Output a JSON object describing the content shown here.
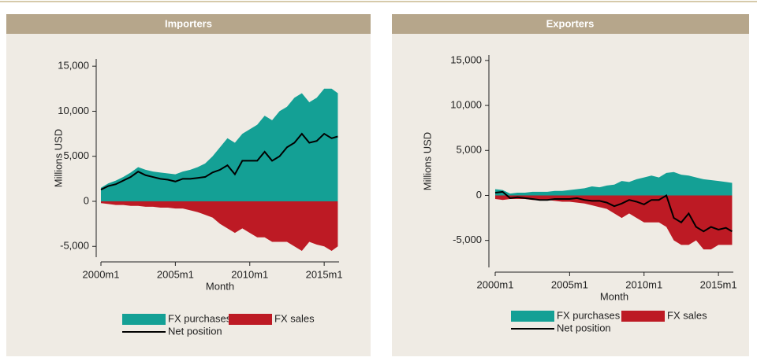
{
  "chart_data": [
    {
      "type": "area",
      "title": "Importers",
      "xlabel": "Month",
      "ylabel": "Millions USD",
      "x": [
        "2000m1",
        "2000m7",
        "2001m1",
        "2001m7",
        "2002m1",
        "2002m7",
        "2003m1",
        "2003m7",
        "2004m1",
        "2004m7",
        "2005m1",
        "2005m7",
        "2006m1",
        "2006m7",
        "2007m1",
        "2007m7",
        "2008m1",
        "2008m7",
        "2009m1",
        "2009m7",
        "2010m1",
        "2010m7",
        "2011m1",
        "2011m7",
        "2012m1",
        "2012m7",
        "2013m1",
        "2013m7",
        "2014m1",
        "2014m7",
        "2015m1",
        "2015m7",
        "2015m12"
      ],
      "xlim": [
        "2000m1",
        "2016m1"
      ],
      "xticks": [
        "2000m1",
        "2005m1",
        "2010m1",
        "2015m1"
      ],
      "ylim": [
        -6200,
        15800
      ],
      "yticks": [
        {
          "value": -5000,
          "label": "-5,000"
        },
        0,
        {
          "value": 5000,
          "label": "5,000"
        },
        {
          "value": 10000,
          "label": "10,000"
        },
        {
          "value": 15000,
          "label": "15,000"
        }
      ],
      "series": [
        {
          "name": "FX purchases",
          "color": "#14a095",
          "style": "area",
          "values": [
            1500,
            2000,
            2300,
            2700,
            3200,
            3800,
            3500,
            3300,
            3200,
            3100,
            3000,
            3300,
            3500,
            3800,
            4200,
            5000,
            6000,
            7000,
            6500,
            7500,
            8000,
            8500,
            9500,
            9000,
            10000,
            10500,
            11500,
            12000,
            11000,
            11500,
            12500,
            12500,
            12000
          ]
        },
        {
          "name": "FX sales",
          "color": "#bd1a24",
          "style": "area",
          "values": [
            -200,
            -300,
            -400,
            -400,
            -500,
            -500,
            -600,
            -600,
            -700,
            -700,
            -800,
            -800,
            -1000,
            -1200,
            -1500,
            -1800,
            -2500,
            -3000,
            -3500,
            -3000,
            -3500,
            -4000,
            -4000,
            -4500,
            -4500,
            -4500,
            -5000,
            -5500,
            -4500,
            -4800,
            -5000,
            -5500,
            -5000
          ]
        },
        {
          "name": "Net position",
          "color": "#000000",
          "style": "line",
          "values": [
            1300,
            1700,
            1900,
            2300,
            2700,
            3300,
            2900,
            2700,
            2500,
            2400,
            2200,
            2500,
            2500,
            2600,
            2700,
            3200,
            3500,
            4000,
            3000,
            4500,
            4500,
            4500,
            5500,
            4500,
            5000,
            6000,
            6500,
            7500,
            6500,
            6700,
            7500,
            7000,
            7200
          ]
        }
      ]
    },
    {
      "type": "area",
      "title": "Exporters",
      "xlabel": "Month",
      "ylabel": "Millions USD",
      "x": [
        "2000m1",
        "2000m7",
        "2001m1",
        "2001m7",
        "2002m1",
        "2002m7",
        "2003m1",
        "2003m7",
        "2004m1",
        "2004m7",
        "2005m1",
        "2005m7",
        "2006m1",
        "2006m7",
        "2007m1",
        "2007m7",
        "2008m1",
        "2008m7",
        "2009m1",
        "2009m7",
        "2010m1",
        "2010m7",
        "2011m1",
        "2011m7",
        "2012m1",
        "2012m7",
        "2013m1",
        "2013m7",
        "2014m1",
        "2014m7",
        "2015m1",
        "2015m7",
        "2015m12"
      ],
      "xlim": [
        "2000m1",
        "2016m1"
      ],
      "xticks": [
        "2000m1",
        "2005m1",
        "2010m1",
        "2015m1"
      ],
      "ylim": [
        -8000,
        15600
      ],
      "yticks": [
        {
          "value": -5000,
          "label": "-5,000"
        },
        0,
        {
          "value": 5000,
          "label": "5,000"
        },
        {
          "value": 10000,
          "label": "10,000"
        },
        {
          "value": 15000,
          "label": "15,000"
        }
      ],
      "series": [
        {
          "name": "FX purchases",
          "color": "#14a095",
          "style": "area",
          "values": [
            700,
            600,
            200,
            300,
            300,
            400,
            400,
            400,
            500,
            500,
            600,
            700,
            800,
            1000,
            900,
            1100,
            1200,
            1600,
            1500,
            1800,
            2000,
            2200,
            2000,
            2500,
            2600,
            2300,
            2200,
            2000,
            1800,
            1700,
            1600,
            1500,
            1400
          ]
        },
        {
          "name": "FX sales",
          "color": "#bd1a24",
          "style": "area",
          "values": [
            -400,
            -500,
            -400,
            -400,
            -400,
            -500,
            -500,
            -500,
            -600,
            -700,
            -700,
            -800,
            -900,
            -1100,
            -1300,
            -1500,
            -2000,
            -2500,
            -2000,
            -2500,
            -3000,
            -3000,
            -3000,
            -3500,
            -5000,
            -5500,
            -5500,
            -5000,
            -6000,
            -6000,
            -5500,
            -5500,
            -5500
          ]
        },
        {
          "name": "Net position",
          "color": "#000000",
          "style": "line",
          "values": [
            300,
            400,
            -300,
            -200,
            -300,
            -400,
            -500,
            -500,
            -400,
            -400,
            -400,
            -300,
            -500,
            -600,
            -600,
            -800,
            -1200,
            -900,
            -500,
            -700,
            -1000,
            -500,
            -500,
            0,
            -2500,
            -3000,
            -2000,
            -3500,
            -4000,
            -3500,
            -3800,
            -3600,
            -4000
          ]
        }
      ]
    }
  ]
}
